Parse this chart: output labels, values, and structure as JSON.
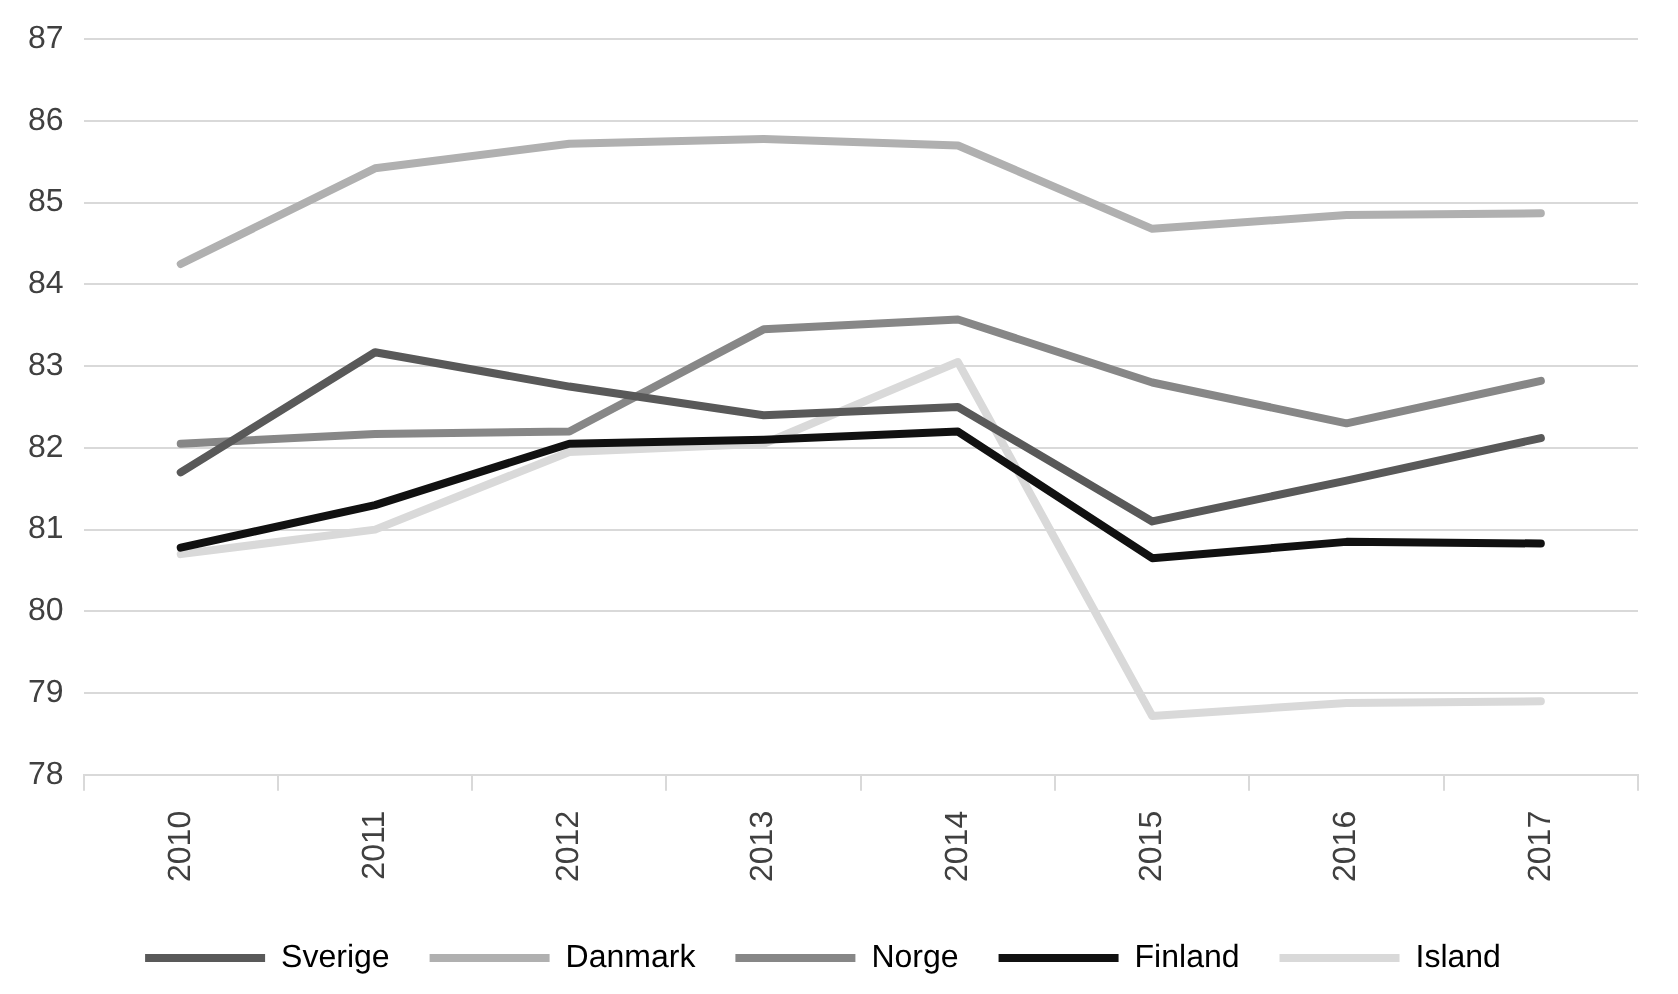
{
  "chart_data": {
    "type": "line",
    "categories": [
      "2010",
      "2011",
      "2012",
      "2013",
      "2014",
      "2015",
      "2016",
      "2017"
    ],
    "ylim": [
      78,
      87
    ],
    "yticks": [
      78,
      79,
      80,
      81,
      82,
      83,
      84,
      85,
      86,
      87
    ],
    "grid": "y",
    "legend": "bottom",
    "marker": "none",
    "line_style": "solid",
    "series": [
      {
        "name": "Sverige",
        "color": "#595959",
        "values": [
          81.7,
          83.17,
          82.75,
          82.4,
          82.5,
          81.1,
          81.6,
          82.12
        ]
      },
      {
        "name": "Danmark",
        "color": "#b0b0b0",
        "values": [
          84.25,
          85.42,
          85.72,
          85.78,
          85.7,
          84.68,
          84.85,
          84.87
        ]
      },
      {
        "name": "Norge",
        "color": "#878787",
        "values": [
          82.05,
          82.17,
          82.2,
          83.45,
          83.57,
          82.8,
          82.3,
          82.82
        ]
      },
      {
        "name": "Finland",
        "color": "#111111",
        "values": [
          80.78,
          81.3,
          82.05,
          82.1,
          82.2,
          80.65,
          80.85,
          80.83
        ]
      },
      {
        "name": "Island",
        "color": "#d9d9d9",
        "values": [
          80.7,
          81.0,
          81.95,
          82.05,
          83.05,
          78.72,
          78.88,
          78.9
        ]
      }
    ]
  }
}
